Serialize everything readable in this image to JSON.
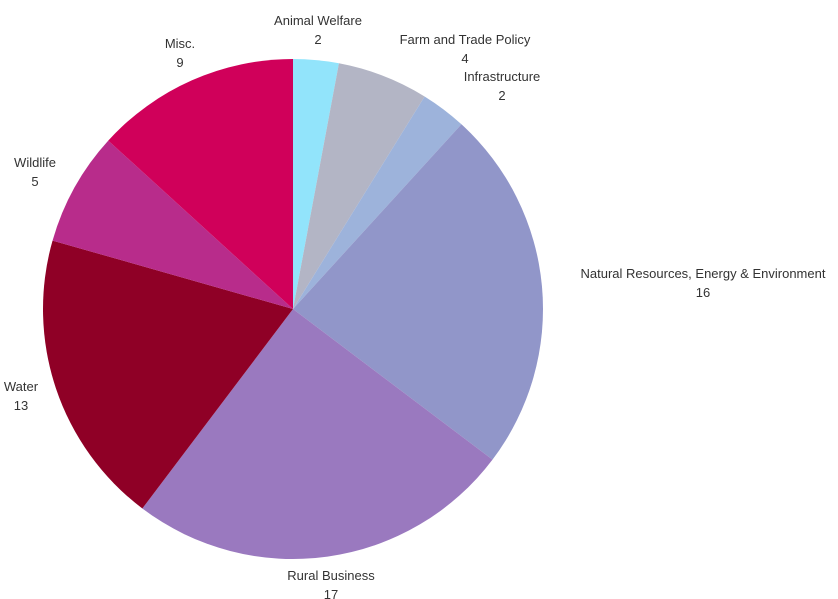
{
  "chart_data": {
    "type": "pie",
    "title": "",
    "slices": [
      {
        "label": "Animal Welfare",
        "value": 2,
        "color": "#92e4fb"
      },
      {
        "label": "Farm and Trade Policy",
        "value": 4,
        "color": "#b3b5c5"
      },
      {
        "label": "Infrastructure",
        "value": 2,
        "color": "#9db3db"
      },
      {
        "label": "Natural Resources, Energy & Environment",
        "value": 16,
        "color": "#9196c9"
      },
      {
        "label": "Rural Business",
        "value": 17,
        "color": "#9a79bf"
      },
      {
        "label": "Water",
        "value": 13,
        "color": "#8f0026"
      },
      {
        "label": "Wildlife",
        "value": 5,
        "color": "#b82c8b"
      },
      {
        "label": "Misc.",
        "value": 9,
        "color": "#d0005a"
      }
    ],
    "start": "top",
    "direction": "clockwise",
    "legend": "none",
    "data_labels": "outside"
  }
}
